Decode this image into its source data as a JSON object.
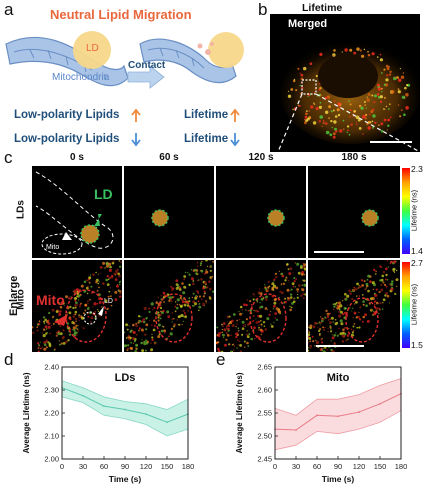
{
  "panels": {
    "a": "a",
    "b": "b",
    "c": "c",
    "d": "d",
    "e": "e"
  },
  "panel_a": {
    "title": "Neutral Lipid Migration",
    "ld_label": "LD",
    "mito_label": "Mitochondria",
    "contact_label": "Contact",
    "row1_left": "Low-polarity Lipids",
    "row1_right": "Lifetime",
    "row2_left": "Low-polarity Lipids",
    "row2_right": "Lifetime",
    "colors": {
      "title": "#e8673c",
      "text": "#1f4e79",
      "up": "#f08a3c",
      "down": "#4a8fd6",
      "mito": "#8fb1da",
      "ld": "#f6d57a"
    }
  },
  "panel_b": {
    "header": "Lifetime",
    "sub": "Merged"
  },
  "panel_c": {
    "times": [
      "0 s",
      "60 s",
      "120 s",
      "180 s"
    ],
    "rows": [
      "LDs",
      "Mito"
    ],
    "side_label": "Enlarge",
    "ld_annot": "LD",
    "mito_annot": "Mito",
    "mito_small": "Mito",
    "ld_small": "LD",
    "colorbar_top": {
      "max": "2.3",
      "min": "1.4",
      "label": "Lifetime (ns)"
    },
    "colorbar_bottom": {
      "max": "2.7",
      "min": "1.5",
      "label": "Lifetime (ns)"
    }
  },
  "chart_data": [
    {
      "type": "line",
      "title": "LDs",
      "xlabel": "Time (s)",
      "ylabel": "Average Lifetime (ns)",
      "x": [
        0,
        30,
        60,
        90,
        120,
        150,
        180
      ],
      "series": [
        {
          "values": [
            2.31,
            2.275,
            2.23,
            2.215,
            2.195,
            2.16,
            2.195
          ],
          "upper": [
            2.34,
            2.31,
            2.27,
            2.25,
            2.24,
            2.215,
            2.26
          ],
          "lower": [
            2.27,
            2.245,
            2.19,
            2.175,
            2.15,
            2.1,
            2.13
          ]
        }
      ],
      "xlim": [
        0,
        180
      ],
      "ylim": [
        2.0,
        2.4
      ],
      "xticks": [
        0,
        30,
        60,
        90,
        120,
        150,
        180
      ],
      "yticks": [
        2.0,
        2.1,
        2.2,
        2.3,
        2.4
      ],
      "ytick_labels": [
        "2.00",
        "2.10",
        "2.20",
        "2.30",
        "2.40"
      ],
      "color": "#5cc9b0",
      "fill": "#bfeee2"
    },
    {
      "type": "line",
      "title": "Mito",
      "xlabel": "Time (s)",
      "ylabel": "Average Lifetime (ns)",
      "x": [
        0,
        30,
        60,
        90,
        120,
        150,
        180
      ],
      "series": [
        {
          "values": [
            2.515,
            2.513,
            2.545,
            2.543,
            2.552,
            2.57,
            2.592
          ],
          "upper": [
            2.56,
            2.545,
            2.58,
            2.58,
            2.59,
            2.61,
            2.625
          ],
          "lower": [
            2.47,
            2.48,
            2.51,
            2.505,
            2.515,
            2.53,
            2.555
          ]
        }
      ],
      "xlim": [
        0,
        180
      ],
      "ylim": [
        2.45,
        2.65
      ],
      "xticks": [
        0,
        30,
        60,
        90,
        120,
        150,
        180
      ],
      "yticks": [
        2.45,
        2.5,
        2.55,
        2.6,
        2.65
      ],
      "ytick_labels": [
        "2.45",
        "2.50",
        "2.55",
        "2.60",
        "2.65"
      ],
      "color": "#e87a85",
      "fill": "#f9d6d9"
    }
  ]
}
